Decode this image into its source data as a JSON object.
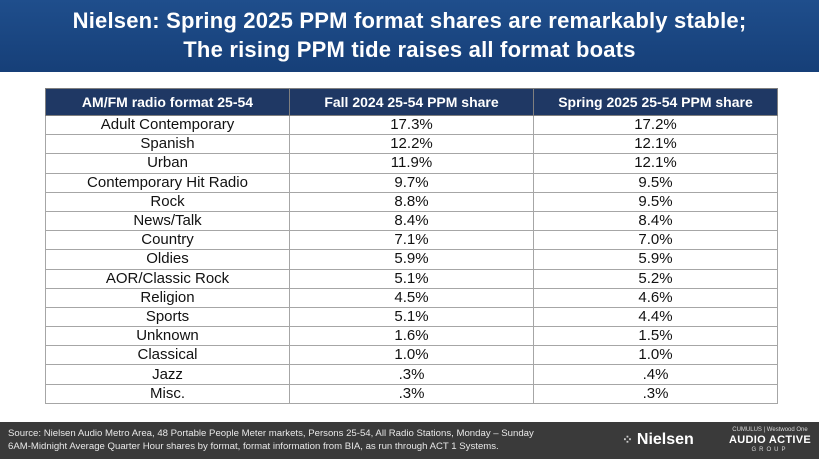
{
  "header": {
    "line1": "Nielsen: Spring 2025 PPM format shares are remarkably stable;",
    "line2": "The rising PPM tide raises all format boats"
  },
  "table": {
    "columns": [
      "AM/FM radio format 25-54",
      "Fall 2024 25-54 PPM share",
      "Spring 2025 25-54 PPM share"
    ],
    "rows": [
      [
        "Adult Contemporary",
        "17.3%",
        "17.2%"
      ],
      [
        "Spanish",
        "12.2%",
        "12.1%"
      ],
      [
        "Urban",
        "11.9%",
        "12.1%"
      ],
      [
        "Contemporary Hit Radio",
        "9.7%",
        "9.5%"
      ],
      [
        "Rock",
        "8.8%",
        "9.5%"
      ],
      [
        "News/Talk",
        "8.4%",
        "8.4%"
      ],
      [
        "Country",
        "7.1%",
        "7.0%"
      ],
      [
        "Oldies",
        "5.9%",
        "5.9%"
      ],
      [
        "AOR/Classic Rock",
        "5.1%",
        "5.2%"
      ],
      [
        "Religion",
        "4.5%",
        "4.6%"
      ],
      [
        "Sports",
        "5.1%",
        "4.4%"
      ],
      [
        "Unknown",
        "1.6%",
        "1.5%"
      ],
      [
        "Classical",
        "1.0%",
        "1.0%"
      ],
      [
        "Jazz",
        ".3%",
        ".4%"
      ],
      [
        "Misc.",
        ".3%",
        ".3%"
      ]
    ]
  },
  "footer": {
    "source_line1": "Source: Nielsen Audio Metro Area, 48 Portable People Meter markets, Persons 25-54, All Radio Stations, Monday – Sunday",
    "source_line2": "6AM-Midnight Average Quarter Hour shares by format, format information from BIA, as run through ACT 1 Systems.",
    "nielsen_logo": "Nielsen",
    "aag_small": "CUMULUS | Westwood One",
    "aag_big": "AUDIO ACTIVE",
    "aag_group": "GROUP"
  },
  "colors": {
    "header_bg": "#1f4e8c",
    "table_header_bg": "#1f3864",
    "footer_bg": "#3a3a3a"
  }
}
